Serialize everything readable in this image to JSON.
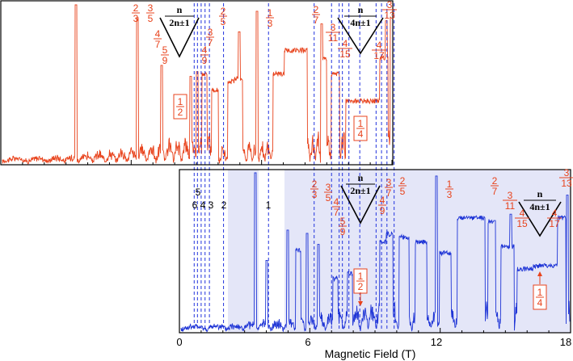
{
  "colors": {
    "top_trace": "#e8431c",
    "bottom_trace": "#1f35d6",
    "dashed": "#2233dd",
    "shade": "#e4e6f8",
    "label": "#e8431c",
    "black": "#000000"
  },
  "chart_data": [
    {
      "type": "line",
      "title": "",
      "panel": "upper",
      "xlabel": "",
      "ylabel": "",
      "series": [
        {
          "name": "upper trace"
        }
      ],
      "labels": {
        "wedge_a": {
          "num": "n",
          "den": "2n±1"
        },
        "wedge_b": {
          "num": "n",
          "den": "4n±1"
        },
        "fracs": [
          {
            "n": "2",
            "d": "3"
          },
          {
            "n": "3",
            "d": "5"
          },
          {
            "n": "4",
            "d": "7"
          },
          {
            "n": "5",
            "d": "9"
          },
          {
            "n": "3",
            "d": "7"
          },
          {
            "n": "4",
            "d": "9"
          },
          {
            "n": "2",
            "d": "5"
          },
          {
            "n": "1",
            "d": "3"
          },
          {
            "n": "2",
            "d": "7"
          },
          {
            "n": "3",
            "d": "11"
          },
          {
            "n": "4",
            "d": "15"
          },
          {
            "n": "4",
            "d": "17"
          },
          {
            "n": "3",
            "d": "13"
          }
        ],
        "boxed_half": {
          "n": "1",
          "d": "2"
        },
        "boxed_quarter": {
          "n": "1",
          "d": "4"
        }
      }
    },
    {
      "type": "line",
      "title": "",
      "panel": "lower",
      "xlabel": "Magnetic Field (T)",
      "ylabel": "",
      "xlim": [
        0,
        18
      ],
      "xticks": [
        0,
        6,
        12,
        18
      ],
      "xtick_labels": [
        "0",
        "6",
        "12",
        "18"
      ],
      "series": [
        {
          "name": "lower trace"
        }
      ],
      "dashed_lines_T": [
        0.68,
        0.83,
        1.0,
        1.18,
        1.38,
        2.03,
        4.1,
        6.2,
        7.0,
        7.35,
        7.5,
        7.8,
        8.3,
        9.05,
        9.3,
        9.55,
        9.88
      ],
      "landau_fillings": [
        "5",
        "6",
        "4",
        "3",
        "2",
        "1"
      ],
      "labels": {
        "wedge_a": {
          "num": "n",
          "den": "2n±1"
        },
        "wedge_b": {
          "num": "n",
          "den": "4n±1"
        },
        "fracs": [
          {
            "n": "2",
            "d": "3"
          },
          {
            "n": "3",
            "d": "5"
          },
          {
            "n": "4",
            "d": "7"
          },
          {
            "n": "5",
            "d": "9"
          },
          {
            "n": "3",
            "d": "7"
          },
          {
            "n": "4",
            "d": "9"
          },
          {
            "n": "2",
            "d": "5"
          },
          {
            "n": "1",
            "d": "3"
          },
          {
            "n": "2",
            "d": "7"
          },
          {
            "n": "3",
            "d": "11"
          },
          {
            "n": "4",
            "d": "15"
          },
          {
            "n": "4",
            "d": "17"
          },
          {
            "n": "3",
            "d": "13"
          }
        ],
        "boxed_half": {
          "n": "1",
          "d": "2"
        },
        "boxed_quarter": {
          "n": "1",
          "d": "4"
        }
      }
    }
  ]
}
